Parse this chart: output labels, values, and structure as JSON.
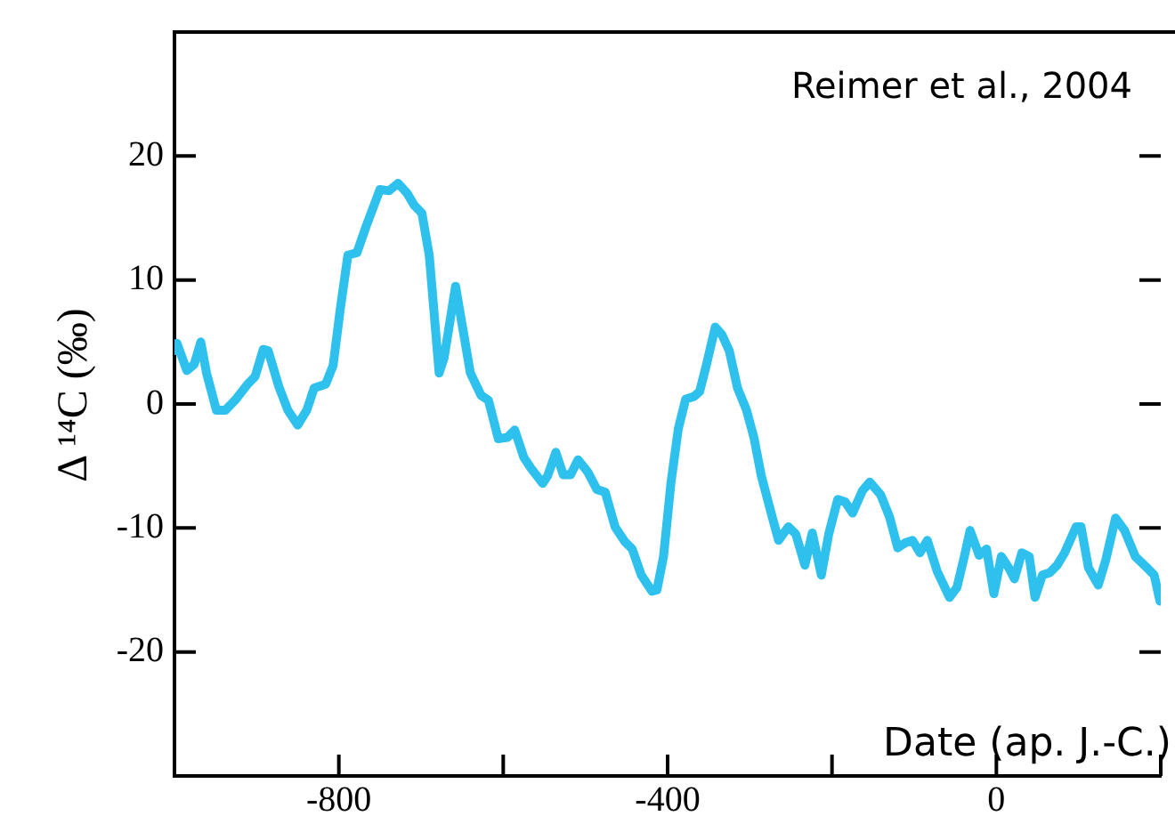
{
  "chart_data": {
    "type": "line",
    "xlabel": "Date (ap. J.-C.)",
    "ylabel": "Δ ¹⁴C (‰)",
    "annotations": [
      "Reimer et al., 2004"
    ],
    "xlim": [
      -1000,
      200
    ],
    "xticks": [
      {
        "value": -1000,
        "label": null
      },
      -800,
      {
        "value": -600,
        "label": null
      },
      -400,
      {
        "value": -200,
        "label": null
      },
      0,
      {
        "value": 200,
        "label": null
      }
    ],
    "ylim": [
      -30,
      30
    ],
    "yticks": [
      -20,
      -10,
      0,
      10,
      20
    ],
    "grid": false,
    "legend": false,
    "marker": "none",
    "line_style": "solid",
    "series": [
      {
        "color": "#2fc1ee",
        "x": [
          -1000,
          -997,
          -985,
          -976,
          -968,
          -961,
          -949,
          -938,
          -925,
          -911,
          -902,
          -892,
          -886,
          -873,
          -862,
          -850,
          -839,
          -830,
          -816,
          -807,
          -798,
          -789,
          -778,
          -767,
          -750,
          -739,
          -728,
          -717,
          -708,
          -699,
          -690,
          -678,
          -672,
          -658,
          -649,
          -640,
          -627,
          -618,
          -606,
          -595,
          -586,
          -575,
          -566,
          -552,
          -546,
          -536,
          -527,
          -518,
          -509,
          -497,
          -486,
          -476,
          -464,
          -452,
          -443,
          -432,
          -419,
          -413,
          -405,
          -396,
          -387,
          -378,
          -368,
          -361,
          -353,
          -342,
          -334,
          -325,
          -315,
          -304,
          -295,
          -286,
          -274,
          -265,
          -253,
          -244,
          -233,
          -224,
          -213,
          -204,
          -193,
          -184,
          -175,
          -163,
          -154,
          -141,
          -130,
          -120,
          -111,
          -102,
          -93,
          -84,
          -72,
          -57,
          -48,
          -39,
          -32,
          -21,
          -12,
          -3,
          6,
          15,
          22,
          31,
          40,
          47,
          56,
          65,
          74,
          83,
          97,
          103,
          112,
          124,
          133,
          145,
          156,
          169,
          183,
          192,
          199
        ],
        "values": [
          4.3,
          4.9,
          2.7,
          3.2,
          5.0,
          2.5,
          -0.5,
          -0.5,
          0.4,
          1.6,
          2.2,
          4.4,
          4.3,
          1.4,
          -0.5,
          -1.7,
          -0.5,
          1.3,
          1.6,
          3.1,
          7.8,
          12.0,
          12.2,
          14.3,
          17.3,
          17.2,
          17.8,
          17.0,
          16.0,
          15.4,
          12.0,
          2.5,
          3.7,
          9.5,
          6.0,
          2.5,
          0.7,
          0.3,
          -2.8,
          -2.7,
          -2.1,
          -4.3,
          -5.2,
          -6.4,
          -5.8,
          -3.9,
          -5.7,
          -5.7,
          -4.5,
          -5.5,
          -6.9,
          -7.1,
          -9.9,
          -11.1,
          -11.7,
          -13.8,
          -15.1,
          -15.0,
          -12.3,
          -6.4,
          -2.0,
          0.4,
          0.6,
          1.0,
          3.1,
          6.2,
          5.6,
          4.3,
          1.3,
          -0.5,
          -2.7,
          -5.8,
          -8.8,
          -11.0,
          -9.9,
          -10.5,
          -13.0,
          -10.4,
          -13.8,
          -10.5,
          -7.7,
          -7.9,
          -8.8,
          -7.0,
          -6.3,
          -7.3,
          -9.1,
          -11.6,
          -11.2,
          -11.0,
          -12.0,
          -11.0,
          -13.5,
          -15.6,
          -14.8,
          -12.3,
          -10.2,
          -12.2,
          -11.7,
          -15.3,
          -12.3,
          -13.2,
          -14.1,
          -12.0,
          -12.3,
          -15.6,
          -13.8,
          -13.6,
          -13.0,
          -12.0,
          -9.9,
          -9.9,
          -13.2,
          -14.6,
          -12.6,
          -9.2,
          -10.2,
          -12.3,
          -13.2,
          -13.8,
          -15.9
        ]
      }
    ]
  }
}
